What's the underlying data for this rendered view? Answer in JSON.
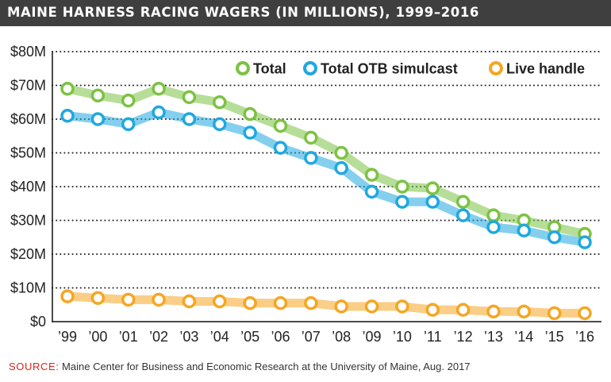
{
  "header": {
    "title": "MAINE HARNESS RACING WAGERS (IN MILLIONS), 1999–2016"
  },
  "colors": {
    "total": "#7cc243",
    "otb": "#1fa8e0",
    "live": "#f5a623",
    "title_bar": "#3f3f3f",
    "source_label": "#d9251c"
  },
  "chart_data": {
    "type": "line",
    "title": "MAINE HARNESS RACING WAGERS (IN MILLIONS), 1999–2016",
    "xlabel": "",
    "ylabel": "",
    "categories": [
      "’99",
      "’00",
      "’01",
      "’02",
      "’03",
      "’04",
      "’05",
      "’06",
      "’07",
      "’08",
      "’09",
      "’10",
      "’11",
      "’12",
      "’13",
      "’14",
      "’15",
      "’16"
    ],
    "y_ticks": [
      0,
      10,
      20,
      30,
      40,
      50,
      60,
      70,
      80
    ],
    "y_tick_labels": [
      "$0",
      "$10M",
      "$20M",
      "$30M",
      "$40M",
      "$50M",
      "$60M",
      "$70M",
      "$80M"
    ],
    "ylim": [
      0,
      80
    ],
    "grid": "horizontal dotted",
    "legend_position": "top-right",
    "series": [
      {
        "name": "Total",
        "color": "#7cc243",
        "values": [
          69,
          67,
          65.5,
          69,
          66.5,
          65,
          61.5,
          58,
          54.5,
          50,
          43.5,
          40,
          39.5,
          35.5,
          31.5,
          30,
          28,
          26
        ]
      },
      {
        "name": "Total OTB simulcast",
        "color": "#1fa8e0",
        "values": [
          61,
          60,
          58.5,
          62,
          60,
          58.5,
          56,
          51.5,
          48.5,
          45.5,
          38.5,
          35.5,
          35.5,
          31.5,
          28,
          27,
          25,
          23.5
        ]
      },
      {
        "name": "Live handle",
        "color": "#f5a623",
        "values": [
          7.5,
          7,
          6.5,
          6.5,
          6,
          6,
          5.5,
          5.5,
          5.5,
          4.5,
          4.5,
          4.5,
          3.5,
          3.5,
          3,
          3,
          2.5,
          2.5
        ]
      }
    ]
  },
  "footer": {
    "source_label": "SOURCE:",
    "source_text": " Maine Center for Business and Economic Research at the University of Maine, Aug. 2017"
  }
}
